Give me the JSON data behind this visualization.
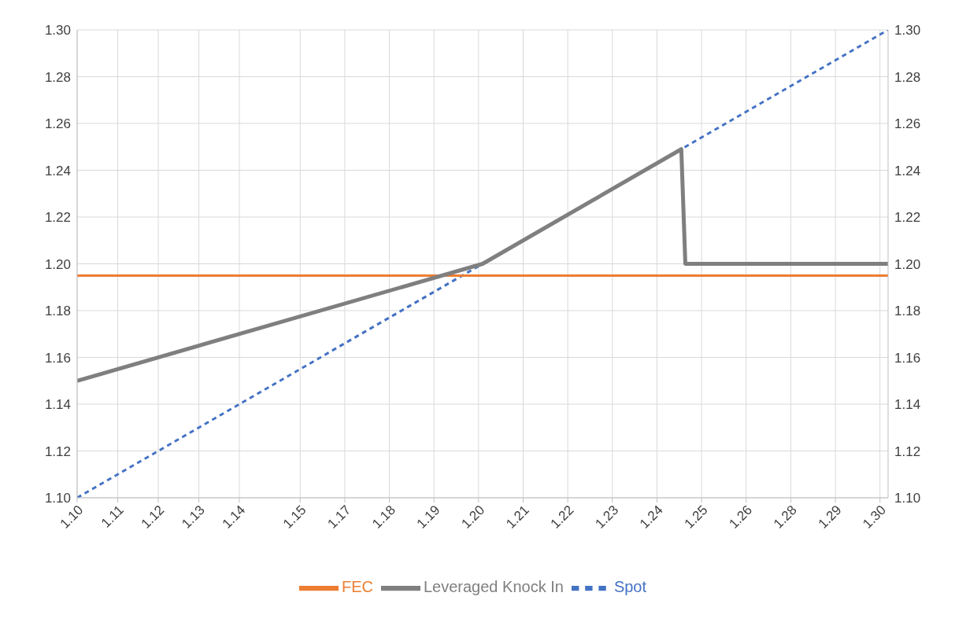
{
  "chart_data": {
    "type": "line",
    "xlim": [
      1.1,
      1.3
    ],
    "xticks": [
      {
        "value": 1.1,
        "label": "1.10"
      },
      1.11,
      1.12,
      1.13,
      1.14,
      {
        "value": 1.155,
        "label": "1.15"
      },
      {
        "value": 1.166,
        "label": "1.17"
      },
      {
        "value": 1.177,
        "label": "1.18"
      },
      {
        "value": 1.188,
        "label": "1.19"
      },
      {
        "value": 1.199,
        "label": "1.20"
      },
      {
        "value": 1.21,
        "label": "1.21"
      },
      {
        "value": 1.221,
        "label": "1.22"
      },
      {
        "value": 1.232,
        "label": "1.23"
      },
      {
        "value": 1.243,
        "label": "1.24"
      },
      {
        "value": 1.254,
        "label": "1.25"
      },
      {
        "value": 1.265,
        "label": "1.26"
      },
      {
        "value": 1.276,
        "label": "1.28"
      },
      {
        "value": 1.287,
        "label": "1.29"
      },
      {
        "value": 1.298,
        "label": "1.30"
      }
    ],
    "ylim": [
      1.1,
      1.3
    ],
    "yticks": [
      {
        "value": 1.1,
        "label": "1.10"
      },
      1.12,
      1.14,
      1.16,
      1.18,
      {
        "value": 1.2,
        "label": "1.20"
      },
      1.22,
      1.24,
      1.26,
      1.28,
      {
        "value": 1.3,
        "label": "1.30"
      }
    ],
    "y2lim": [
      1.1,
      1.3
    ],
    "y2ticks": [
      {
        "value": 1.1,
        "label": "1.10"
      },
      1.12,
      1.14,
      1.16,
      1.18,
      {
        "value": 1.2,
        "label": "1.20"
      },
      1.22,
      1.24,
      1.26,
      1.28,
      {
        "value": 1.3,
        "label": "1.30"
      }
    ],
    "grid": true,
    "legend": "bottom",
    "marker": "none",
    "series": [
      {
        "name": "Spot",
        "color": "#4472c4",
        "line_style": "dashed",
        "x": [
          1.1,
          1.3
        ],
        "values": [
          1.1,
          1.3
        ]
      },
      {
        "name": "FEC",
        "color": "#ed7d31",
        "line_style": "solid",
        "x": [
          1.1,
          1.3
        ],
        "values": [
          1.195,
          1.195
        ]
      },
      {
        "name": "Leveraged Knock In",
        "color": "#7f7f7f",
        "line_style": "solid",
        "x": [
          1.1,
          1.2,
          1.249,
          1.25,
          1.3
        ],
        "values": [
          1.15,
          1.2,
          1.249,
          1.2,
          1.2
        ]
      }
    ]
  }
}
